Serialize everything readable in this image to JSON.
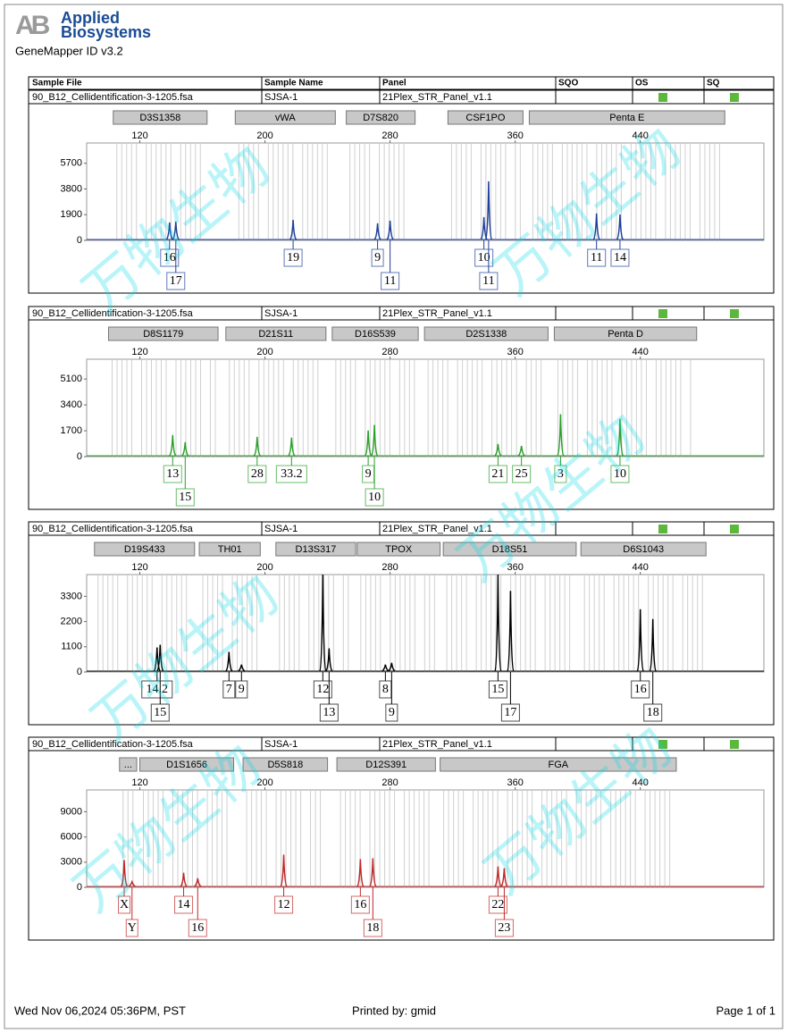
{
  "header": {
    "logo_mark": "AB",
    "brand_lines": [
      "Applied",
      "Biosystems"
    ],
    "app": "GeneMapper ID v3.2"
  },
  "columns": [
    "Sample File",
    "Sample Name",
    "Panel",
    "SQO",
    "OS",
    "SQ"
  ],
  "status_color": "#5cb83c",
  "watermark": "万物生物",
  "panels": [
    {
      "sample_file": "90_B12_Cellidentification-3-1205.fsa",
      "sample_name": "SJSA-1",
      "panel": "21Plex_STR_Panel_v1.1",
      "color": "#1f3f99",
      "xlim": [
        86,
        519
      ],
      "xticks": [
        120,
        200,
        280,
        360,
        440
      ],
      "ylim": [
        0,
        7200
      ],
      "yticks": [
        0,
        1900,
        3800,
        5700
      ],
      "markers": [
        {
          "name": "D3S1358",
          "range": [
            103,
            163
          ]
        },
        {
          "name": "vWA",
          "range": [
            181,
            245
          ]
        },
        {
          "name": "D7S820",
          "range": [
            252,
            296
          ]
        },
        {
          "name": "CSF1PO",
          "range": [
            317,
            365
          ]
        },
        {
          "name": "Penta E",
          "range": [
            369,
            494
          ]
        }
      ],
      "peaks": [
        {
          "x": 139,
          "height": 1330,
          "allele": "16"
        },
        {
          "x": 143,
          "height": 1390,
          "allele": "17"
        },
        {
          "x": 218,
          "height": 1520,
          "allele": "19"
        },
        {
          "x": 272,
          "height": 1260,
          "allele": "9"
        },
        {
          "x": 280,
          "height": 1460,
          "allele": "11"
        },
        {
          "x": 340,
          "height": 1720,
          "allele": "10"
        },
        {
          "x": 343,
          "height": 4370,
          "allele": "11"
        },
        {
          "x": 412,
          "height": 1990,
          "allele": "11"
        },
        {
          "x": 427,
          "height": 1920,
          "allele": "14"
        }
      ]
    },
    {
      "sample_file": "90_B12_Cellidentification-3-1205.fsa",
      "sample_name": "SJSA-1",
      "panel": "21Plex_STR_Panel_v1.1",
      "color": "#2aa02a",
      "xlim": [
        86,
        519
      ],
      "xticks": [
        120,
        200,
        280,
        360,
        440
      ],
      "ylim": [
        0,
        6400
      ],
      "yticks": [
        0,
        1700,
        3400,
        5100
      ],
      "markers": [
        {
          "name": "D8S1179",
          "range": [
            100,
            170
          ]
        },
        {
          "name": "D21S11",
          "range": [
            175,
            239
          ]
        },
        {
          "name": "D16S539",
          "range": [
            243,
            298
          ]
        },
        {
          "name": "D2S1338",
          "range": [
            302,
            381
          ]
        },
        {
          "name": "Penta D",
          "range": [
            385,
            476
          ]
        }
      ],
      "peaks": [
        {
          "x": 141,
          "height": 1420,
          "allele": "13"
        },
        {
          "x": 149,
          "height": 950,
          "allele": "15"
        },
        {
          "x": 195,
          "height": 1300,
          "allele": "28"
        },
        {
          "x": 217,
          "height": 1250,
          "allele": "33.2"
        },
        {
          "x": 266,
          "height": 1720,
          "allele": "9"
        },
        {
          "x": 270,
          "height": 2080,
          "allele": "10"
        },
        {
          "x": 349,
          "height": 830,
          "allele": "21"
        },
        {
          "x": 364,
          "height": 710,
          "allele": "25"
        },
        {
          "x": 389,
          "height": 2790,
          "allele": "3"
        },
        {
          "x": 427,
          "height": 2490,
          "allele": "10"
        }
      ]
    },
    {
      "sample_file": "90_B12_Cellidentification-3-1205.fsa",
      "sample_name": "SJSA-1",
      "panel": "21Plex_STR_Panel_v1.1",
      "color": "#000000",
      "xlim": [
        86,
        519
      ],
      "xticks": [
        120,
        200,
        280,
        360,
        440
      ],
      "ylim": [
        0,
        4250
      ],
      "yticks": [
        0,
        1100,
        2200,
        3300
      ],
      "markers": [
        {
          "name": "D19S433",
          "range": [
            91,
            155
          ]
        },
        {
          "name": "TH01",
          "range": [
            158,
            197
          ]
        },
        {
          "name": "D13S317",
          "range": [
            207,
            258
          ]
        },
        {
          "name": "TPOX",
          "range": [
            259,
            312
          ]
        },
        {
          "name": "D18S51",
          "range": [
            314,
            399
          ]
        },
        {
          "name": "D6S1043",
          "range": [
            402,
            482
          ]
        }
      ],
      "peaks": [
        {
          "x": 131,
          "height": 1070,
          "allele": "14.2"
        },
        {
          "x": 133,
          "height": 1190,
          "allele": "15"
        },
        {
          "x": 177,
          "height": 880,
          "allele": "7"
        },
        {
          "x": 185,
          "height": 320,
          "allele": "9"
        },
        {
          "x": 237,
          "height": 4250,
          "allele": "12"
        },
        {
          "x": 241,
          "height": 1030,
          "allele": "13"
        },
        {
          "x": 277,
          "height": 320,
          "allele": "8"
        },
        {
          "x": 281,
          "height": 400,
          "allele": "9"
        },
        {
          "x": 349,
          "height": 4250,
          "allele": "15"
        },
        {
          "x": 357,
          "height": 3540,
          "allele": "17"
        },
        {
          "x": 440,
          "height": 2740,
          "allele": "16"
        },
        {
          "x": 448,
          "height": 2310,
          "allele": "18"
        }
      ]
    },
    {
      "sample_file": "90_B12_Cellidentification-3-1205.fsa",
      "sample_name": "SJSA-1",
      "panel": "21Plex_STR_Panel_v1.1",
      "color": "#c0282a",
      "xlim": [
        86,
        519
      ],
      "xticks": [
        120,
        200,
        280,
        360,
        440
      ],
      "ylim": [
        0,
        11600
      ],
      "yticks": [
        0,
        3000,
        6000,
        9000
      ],
      "markers": [
        {
          "name": "...",
          "range": [
            107,
            118
          ]
        },
        {
          "name": "D1S1656",
          "range": [
            120,
            180
          ]
        },
        {
          "name": "D5S818",
          "range": [
            186,
            240
          ]
        },
        {
          "name": "D12S391",
          "range": [
            246,
            309
          ]
        },
        {
          "name": "FGA",
          "range": [
            312,
            463
          ]
        }
      ],
      "peaks": [
        {
          "x": 110,
          "height": 3250,
          "allele": "X"
        },
        {
          "x": 115,
          "height": 650,
          "allele": "Y"
        },
        {
          "x": 148,
          "height": 1740,
          "allele": "14"
        },
        {
          "x": 157,
          "height": 1080,
          "allele": "16"
        },
        {
          "x": 212,
          "height": 3900,
          "allele": "12"
        },
        {
          "x": 261,
          "height": 3360,
          "allele": "16"
        },
        {
          "x": 269,
          "height": 3470,
          "allele": "18"
        },
        {
          "x": 349,
          "height": 2490,
          "allele": "22"
        },
        {
          "x": 353,
          "height": 2280,
          "allele": "23"
        }
      ]
    }
  ],
  "footer": {
    "printed": "Wed Nov 06,2024 05:36PM, PST",
    "printed_by": "Printed by: gmid",
    "page": "Page 1 of 1"
  }
}
